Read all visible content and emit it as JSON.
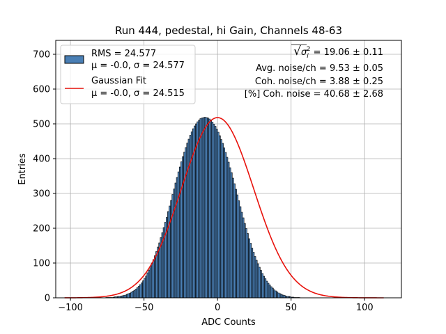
{
  "colors": {
    "bar_fill": "#4a7fb5",
    "bar_edge": "#000000",
    "fit_line": "#e8120c",
    "grid": "#b0b0b0"
  },
  "chart_data": {
    "type": "bar",
    "title": "Run 444, pedestal, hi Gain, Channels 48-63",
    "xlabel": "ADC Counts",
    "ylabel": "Entries",
    "xlim": [
      -110,
      125
    ],
    "ylim": [
      0,
      740
    ],
    "xticks": [
      -100,
      -50,
      0,
      50,
      100
    ],
    "xtick_labels": [
      "−100",
      "−50",
      "0",
      "50",
      "100"
    ],
    "yticks": [
      0,
      100,
      200,
      300,
      400,
      500,
      600,
      700
    ],
    "ytick_labels": [
      "0",
      "100",
      "200",
      "300",
      "400",
      "500",
      "600",
      "700"
    ],
    "grid": true,
    "legend_position": "top-left",
    "histogram": {
      "bin_width": 1,
      "bin_start": -104,
      "counts": [
        0,
        0,
        0,
        0,
        0,
        0,
        0,
        0,
        0,
        0,
        0,
        0,
        0,
        0,
        0,
        0,
        0,
        0,
        0,
        0,
        0,
        0,
        0,
        0,
        0,
        0,
        0,
        0,
        1,
        1,
        1,
        1,
        1,
        2,
        3,
        3,
        4,
        4,
        5,
        6,
        7,
        8,
        10,
        12,
        13,
        16,
        19,
        21,
        25,
        29,
        33,
        38,
        43,
        49,
        56,
        63,
        72,
        80,
        90,
        100,
        110,
        121,
        133,
        146,
        158,
        173,
        187,
        202,
        217,
        231,
        248,
        264,
        280,
        297,
        313,
        330,
        346,
        362,
        376,
        391,
        406,
        419,
        432,
        445,
        456,
        467,
        477,
        486,
        494,
        500,
        506,
        511,
        515,
        517,
        518,
        519,
        518,
        517,
        514,
        511,
        505,
        499,
        493,
        485,
        476,
        466,
        455,
        444,
        431,
        418,
        404,
        390,
        374,
        360,
        344,
        328,
        312,
        296,
        279,
        262,
        246,
        230,
        214,
        199,
        185,
        170,
        157,
        143,
        131,
        119,
        108,
        98,
        88,
        79,
        70,
        62,
        55,
        48,
        42,
        37,
        32,
        28,
        23,
        20,
        17,
        14,
        12,
        10,
        8,
        7,
        5,
        4,
        4,
        3,
        2,
        2,
        1,
        1,
        1,
        1,
        0,
        0,
        0,
        0,
        0,
        0,
        0,
        0,
        0,
        0,
        0,
        0,
        0,
        0,
        0,
        0,
        0,
        0,
        0,
        0,
        0,
        0,
        0,
        0,
        0,
        0,
        0,
        0,
        0,
        0,
        0,
        0,
        0,
        0,
        0,
        0,
        0,
        0,
        0,
        0,
        0,
        0,
        0,
        0,
        0,
        0,
        0,
        0,
        0,
        0,
        0,
        0
      ]
    },
    "fit": {
      "x_range": [
        -104,
        113
      ],
      "mean": 0.0,
      "sigma": 24.515,
      "amplitude": 518
    },
    "legend": [
      {
        "type": "patch",
        "line1": "RMS = 24.577",
        "line2": "μ = -0.0, σ = 24.577"
      },
      {
        "type": "line",
        "line1": "Gaussian Fit",
        "line2": "μ = -0.0, σ = 24.515"
      }
    ],
    "stats": {
      "line1_prefix": "√",
      "line1_var": "σ",
      "line1_sub": "i",
      "line1_sup": "2",
      "line1_value": " = 19.06 ± 0.11",
      "line2": "Avg. noise/ch = 9.53 ± 0.05",
      "line3": "Coh. noise/ch = 3.88 ± 0.25",
      "line4": "[%] Coh. noise = 40.68 ± 2.68"
    }
  }
}
